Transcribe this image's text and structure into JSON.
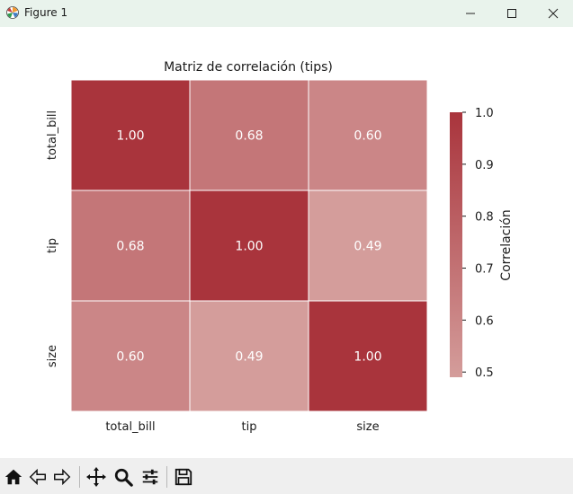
{
  "window": {
    "title": "Figure 1",
    "app_icon": "matplotlib-icon",
    "controls": [
      "minimize-icon",
      "maximize-icon",
      "close-icon"
    ]
  },
  "toolbar": {
    "tools": [
      "home-icon",
      "back-icon",
      "forward-icon",
      "pan-icon",
      "zoom-icon",
      "configure-subplots-icon",
      "save-icon"
    ]
  },
  "chart_data": {
    "type": "heatmap",
    "title": "Matriz de correlación (tips)",
    "row_labels": [
      "total_bill",
      "tip",
      "size"
    ],
    "col_labels": [
      "total_bill",
      "tip",
      "size"
    ],
    "values": [
      [
        1.0,
        0.68,
        0.6
      ],
      [
        0.68,
        1.0,
        0.49
      ],
      [
        0.6,
        0.49,
        1.0
      ]
    ],
    "annotations": [
      [
        "1.00",
        "0.68",
        "0.60"
      ],
      [
        "0.68",
        "1.00",
        "0.49"
      ],
      [
        "0.60",
        "0.49",
        "1.00"
      ]
    ],
    "colorbar": {
      "label": "Correlación",
      "range": [
        0.49,
        1.0
      ],
      "ticks": [
        "1.0",
        "0.9",
        "0.8",
        "0.7",
        "0.6",
        "0.5"
      ],
      "tick_values": [
        1.0,
        0.9,
        0.8,
        0.7,
        0.6,
        0.5
      ],
      "color_low": "#d49d9b",
      "color_high": "#a9343c"
    },
    "annotation_color": "#ffffff",
    "cell_border_color": "#ffffff"
  }
}
